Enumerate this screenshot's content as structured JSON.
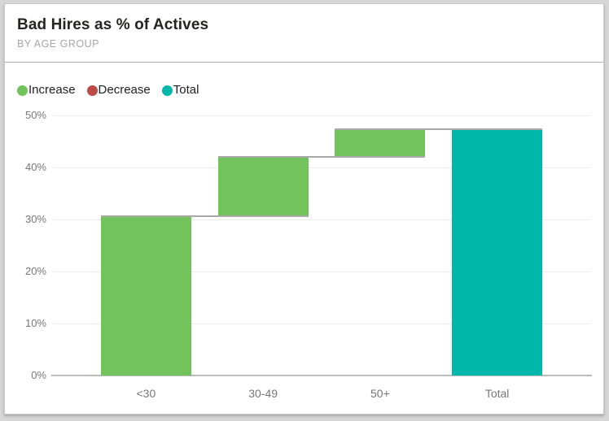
{
  "window": {
    "background": "#d6d6d6"
  },
  "card": {
    "title": "Bad Hires as % of Actives",
    "subtitle": "BY AGE GROUP",
    "background": "#ffffff",
    "border_color": "#c9c9c9",
    "divider_color": "#adadad"
  },
  "legend": {
    "position": "top-left",
    "items": [
      {
        "label": "Increase",
        "color": "#73c35c"
      },
      {
        "label": "Decrease",
        "color": "#be4a47"
      },
      {
        "label": "Total",
        "color": "#00b8aa"
      }
    ]
  },
  "chart_data": {
    "type": "bar",
    "subtype": "waterfall",
    "title": "Bad Hires as % of Actives",
    "subtitle": "BY AGE GROUP",
    "categories": [
      "<30",
      "30-49",
      "50+",
      "Total"
    ],
    "series": [
      {
        "name": "Bad Hires as % of Actives",
        "segment": [
          "increase",
          "increase",
          "increase",
          "total"
        ],
        "values": [
          30.6,
          11.4,
          5.4,
          47.4
        ]
      }
    ],
    "cumulative": [
      30.6,
      42.0,
      47.4,
      47.4
    ],
    "y_ticks": [
      {
        "value": 0,
        "label": "0%"
      },
      {
        "value": 10,
        "label": "10%"
      },
      {
        "value": 20,
        "label": "20%"
      },
      {
        "value": 30,
        "label": "30%"
      },
      {
        "value": 40,
        "label": "40%"
      },
      {
        "value": 50,
        "label": "50%"
      }
    ],
    "ylim": [
      0,
      50
    ],
    "grid": true,
    "legend_position": "top-left",
    "colors": {
      "increase": "#73c35c",
      "decrease": "#be4a47",
      "total": "#00b8aa",
      "connector": "#a9a9a9",
      "gridline": "#ededed",
      "axis_line": "#bcbcbc",
      "axis_text": "#777777"
    }
  }
}
